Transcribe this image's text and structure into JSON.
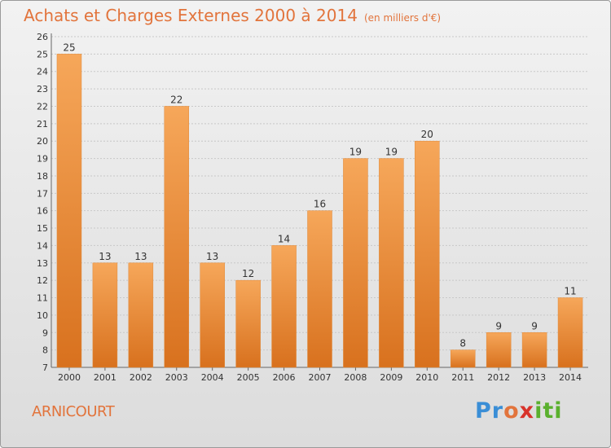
{
  "header": {
    "title": "Achats et Charges Externes 2000 à 2014",
    "unit": "(en milliers d'€)"
  },
  "footer": {
    "commune": "ARNICOURT",
    "logo": {
      "p": "Pr",
      "o": "o",
      "x": "x",
      "iti": "iti"
    }
  },
  "colors": {
    "title": "#e2743c",
    "bar_light": "#f6a75a",
    "bar_dark": "#d8711e",
    "grid": "#c8c8c8"
  },
  "chart_data": {
    "type": "bar",
    "categories": [
      "2000",
      "2001",
      "2002",
      "2003",
      "2004",
      "2005",
      "2006",
      "2007",
      "2008",
      "2009",
      "2010",
      "2011",
      "2012",
      "2013",
      "2014"
    ],
    "values": [
      25,
      13,
      13,
      22,
      13,
      12,
      14,
      16,
      19,
      19,
      20,
      8,
      9,
      9,
      11
    ],
    "title": "Achats et Charges Externes 2000 à 2014",
    "subtitle": "(en milliers d'€)",
    "ylim": [
      7,
      26
    ],
    "ytick_step": 1,
    "grid": true,
    "legend": "none"
  }
}
